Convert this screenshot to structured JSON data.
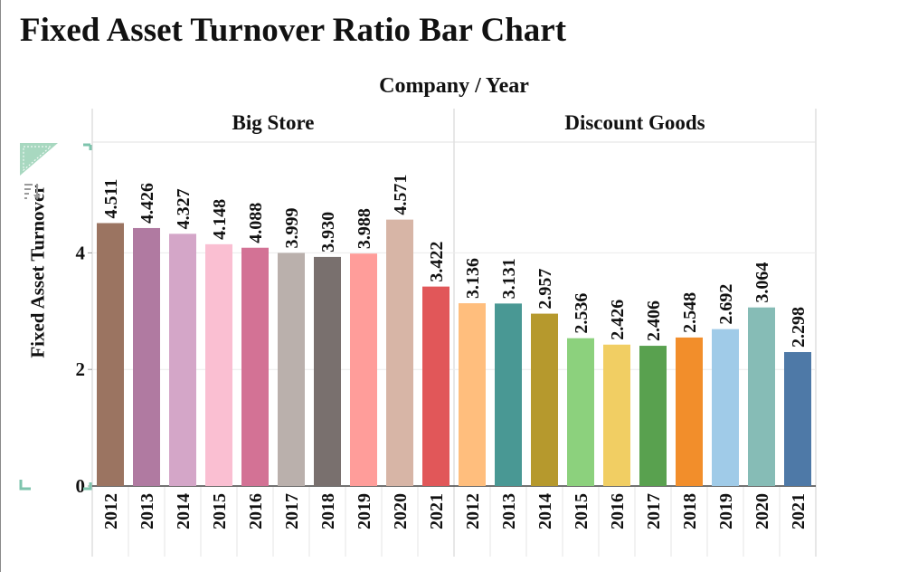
{
  "page": {
    "title": "Fixed Asset Turnover Ratio Bar Chart"
  },
  "chart_data": {
    "type": "bar",
    "title": "Fixed Asset Turnover Ratio Bar Chart",
    "column_header": "Company  /  Year",
    "ylabel": "Fixed Asset Turnover",
    "ylim": [
      0,
      5.8
    ],
    "yticks": [
      0,
      2,
      4
    ],
    "grid": true,
    "groups": [
      {
        "name": "Big Store",
        "categories": [
          "2012",
          "2013",
          "2014",
          "2015",
          "2016",
          "2017",
          "2018",
          "2019",
          "2020",
          "2021"
        ],
        "values": [
          4.511,
          4.426,
          4.327,
          4.148,
          4.088,
          3.999,
          3.93,
          3.988,
          4.571,
          3.422
        ],
        "labels": [
          "4.511",
          "4.426",
          "4.327",
          "4.148",
          "4.088",
          "3.999",
          "3.930",
          "3.988",
          "4.571",
          "3.422"
        ]
      },
      {
        "name": "Discount Goods",
        "categories": [
          "2012",
          "2013",
          "2014",
          "2015",
          "2016",
          "2017",
          "2018",
          "2019",
          "2020",
          "2021"
        ],
        "values": [
          3.136,
          3.131,
          2.957,
          2.536,
          2.426,
          2.406,
          2.548,
          2.692,
          3.064,
          2.298
        ],
        "labels": [
          "3.136",
          "3.131",
          "2.957",
          "2.536",
          "2.426",
          "2.406",
          "2.548",
          "2.692",
          "3.064",
          "2.298"
        ]
      }
    ],
    "colors": {
      "Big Store": [
        "#9b7461",
        "#b07aa1",
        "#d4a6c8",
        "#fabfd2",
        "#d37295",
        "#bab0ac",
        "#79706e",
        "#ff9d9a",
        "#d7b5a6",
        "#e15759"
      ],
      "Discount Goods": [
        "#ffbe7d",
        "#499894",
        "#b6992d",
        "#8cd17d",
        "#f1ce63",
        "#59a14f",
        "#f28e2b",
        "#a0cbe8",
        "#86bcb6",
        "#4e79a7"
      ]
    }
  },
  "icons": {
    "sort": "sort-icon",
    "corner": "corner-marker-icon"
  }
}
